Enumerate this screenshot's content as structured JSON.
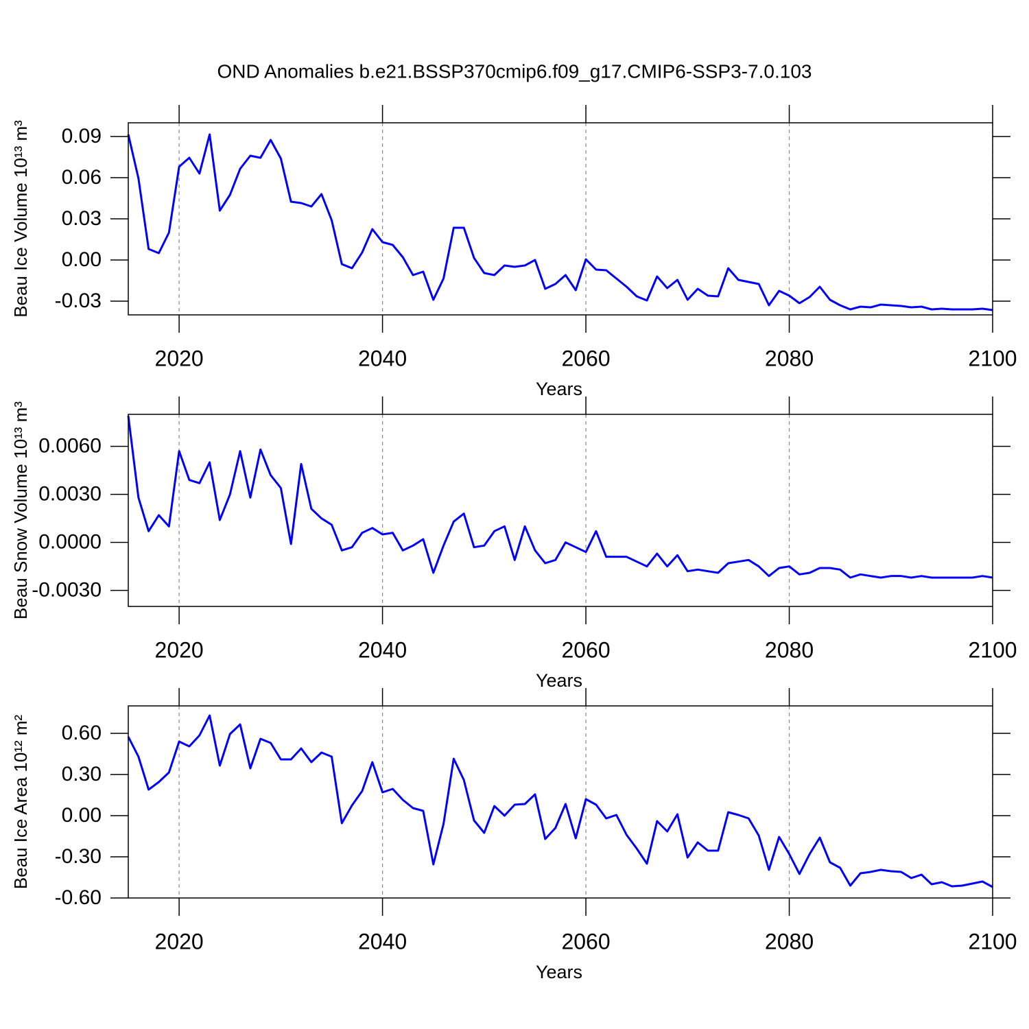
{
  "chart_data": [
    {
      "type": "line",
      "title": "OND Anomalies b.e21.BSSP370cmip6.f09_g17.CMIP6-SSP3-7.0.103",
      "xlabel": "Years",
      "ylabel": "Beau Ice Volume 10¹³ m³",
      "color": "#0000ff",
      "grid": true,
      "xlim": [
        2015,
        2100
      ],
      "xticks": [
        2020,
        2040,
        2060,
        2080,
        2100
      ],
      "ylim": [
        -0.04,
        0.1
      ],
      "yticks": [
        -0.03,
        {
          "value": 0,
          "label": "0.00"
        },
        0.03,
        0.06,
        0.09
      ],
      "x": [
        2015,
        2016,
        2017,
        2018,
        2019,
        2020,
        2021,
        2022,
        2023,
        2024,
        2025,
        2026,
        2027,
        2028,
        2029,
        2030,
        2031,
        2032,
        2033,
        2034,
        2035,
        2036,
        2037,
        2038,
        2039,
        2040,
        2041,
        2042,
        2043,
        2044,
        2045,
        2046,
        2047,
        2048,
        2049,
        2050,
        2051,
        2052,
        2053,
        2054,
        2055,
        2056,
        2057,
        2058,
        2059,
        2060,
        2061,
        2062,
        2063,
        2064,
        2065,
        2066,
        2067,
        2068,
        2069,
        2070,
        2071,
        2072,
        2073,
        2074,
        2075,
        2076,
        2077,
        2078,
        2079,
        2080,
        2081,
        2082,
        2083,
        2084,
        2085,
        2086,
        2087,
        2088,
        2089,
        2090,
        2091,
        2092,
        2093,
        2094,
        2095,
        2096,
        2097,
        2098,
        2099,
        2100
      ],
      "values": [
        0.0915,
        0.0595,
        0.008,
        0.005,
        0.02,
        0.068,
        0.0745,
        0.063,
        0.0915,
        0.036,
        0.0475,
        0.0665,
        0.076,
        0.0745,
        0.0875,
        0.074,
        0.0425,
        0.0415,
        0.039,
        0.048,
        0.029,
        -0.003,
        -0.006,
        0.0055,
        0.0225,
        0.013,
        0.011,
        0.002,
        -0.011,
        -0.0085,
        -0.029,
        -0.0135,
        0.0235,
        0.0235,
        0.0015,
        -0.0095,
        -0.011,
        -0.004,
        -0.005,
        -0.004,
        0.0,
        -0.021,
        -0.0175,
        -0.011,
        -0.022,
        0.0005,
        -0.007,
        -0.0075,
        -0.0135,
        -0.0195,
        -0.0265,
        -0.0295,
        -0.012,
        -0.0205,
        -0.0145,
        -0.029,
        -0.021,
        -0.026,
        -0.0265,
        -0.006,
        -0.0145,
        -0.016,
        -0.0175,
        -0.033,
        -0.0225,
        -0.026,
        -0.0315,
        -0.027,
        -0.0195,
        -0.029,
        -0.033,
        -0.036,
        -0.034,
        -0.0345,
        -0.0325,
        -0.033,
        -0.0335,
        -0.0345,
        -0.034,
        -0.036,
        -0.0355,
        -0.036,
        -0.036,
        -0.036,
        -0.0355,
        -0.0365
      ]
    },
    {
      "type": "line",
      "xlabel": "Years",
      "ylabel": "Beau Snow Volume 10¹³ m³",
      "color": "#0000ff",
      "grid": true,
      "xlim": [
        2015,
        2100
      ],
      "xticks": [
        2020,
        2040,
        2060,
        2080,
        2100
      ],
      "ylim": [
        -0.004,
        0.008
      ],
      "yticks": [
        {
          "value": -0.003,
          "label": "-0.0030"
        },
        {
          "value": 0,
          "label": "0.0000"
        },
        {
          "value": 0.003,
          "label": "0.0030"
        },
        {
          "value": 0.006,
          "label": "0.0060"
        }
      ],
      "x": [
        2015,
        2016,
        2017,
        2018,
        2019,
        2020,
        2021,
        2022,
        2023,
        2024,
        2025,
        2026,
        2027,
        2028,
        2029,
        2030,
        2031,
        2032,
        2033,
        2034,
        2035,
        2036,
        2037,
        2038,
        2039,
        2040,
        2041,
        2042,
        2043,
        2044,
        2045,
        2046,
        2047,
        2048,
        2049,
        2050,
        2051,
        2052,
        2053,
        2054,
        2055,
        2056,
        2057,
        2058,
        2059,
        2060,
        2061,
        2062,
        2063,
        2064,
        2065,
        2066,
        2067,
        2068,
        2069,
        2070,
        2071,
        2072,
        2073,
        2074,
        2075,
        2076,
        2077,
        2078,
        2079,
        2080,
        2081,
        2082,
        2083,
        2084,
        2085,
        2086,
        2087,
        2088,
        2089,
        2090,
        2091,
        2092,
        2093,
        2094,
        2095,
        2096,
        2097,
        2098,
        2099,
        2100
      ],
      "values": [
        0.0079,
        0.0028,
        0.0007,
        0.0017,
        0.001,
        0.0057,
        0.0039,
        0.0037,
        0.005,
        0.0014,
        0.003,
        0.0057,
        0.0028,
        0.0058,
        0.0042,
        0.0034,
        -0.0001,
        0.0049,
        0.0021,
        0.0015,
        0.0011,
        -0.0005,
        -0.0003,
        0.0006,
        0.0009,
        0.0005,
        0.0006,
        -0.0005,
        -0.0002,
        0.0002,
        -0.0019,
        -0.0002,
        0.0013,
        0.0018,
        -0.0003,
        -0.0002,
        0.0007,
        0.001,
        -0.0011,
        0.001,
        -0.0005,
        -0.0013,
        -0.0011,
        0.0,
        -0.0003,
        -0.0006,
        0.0007,
        -0.0009,
        -0.0009,
        -0.0009,
        -0.0012,
        -0.0015,
        -0.0007,
        -0.0015,
        -0.0008,
        -0.0018,
        -0.0017,
        -0.0018,
        -0.0019,
        -0.0013,
        -0.0012,
        -0.0011,
        -0.0015,
        -0.0021,
        -0.0016,
        -0.0015,
        -0.002,
        -0.0019,
        -0.0016,
        -0.0016,
        -0.0017,
        -0.0022,
        -0.002,
        -0.0021,
        -0.0022,
        -0.0021,
        -0.0021,
        -0.0022,
        -0.0021,
        -0.0022,
        -0.0022,
        -0.0022,
        -0.0022,
        -0.0022,
        -0.0021,
        -0.0022
      ]
    },
    {
      "type": "line",
      "xlabel": "Years",
      "ylabel": "Beau Ice Area 10¹² m²",
      "color": "#0000ff",
      "grid": true,
      "xlim": [
        2015,
        2100
      ],
      "xticks": [
        2020,
        2040,
        2060,
        2080,
        2100
      ],
      "ylim": [
        -0.6,
        0.8
      ],
      "yticks": [
        {
          "value": -0.6,
          "label": "-0.60"
        },
        {
          "value": -0.3,
          "label": "-0.30"
        },
        {
          "value": 0,
          "label": "0.00"
        },
        {
          "value": 0.3,
          "label": "0.30"
        },
        {
          "value": 0.6,
          "label": "0.60"
        }
      ],
      "x": [
        2015,
        2016,
        2017,
        2018,
        2019,
        2020,
        2021,
        2022,
        2023,
        2024,
        2025,
        2026,
        2027,
        2028,
        2029,
        2030,
        2031,
        2032,
        2033,
        2034,
        2035,
        2036,
        2037,
        2038,
        2039,
        2040,
        2041,
        2042,
        2043,
        2044,
        2045,
        2046,
        2047,
        2048,
        2049,
        2050,
        2051,
        2052,
        2053,
        2054,
        2055,
        2056,
        2057,
        2058,
        2059,
        2060,
        2061,
        2062,
        2063,
        2064,
        2065,
        2066,
        2067,
        2068,
        2069,
        2070,
        2071,
        2072,
        2073,
        2074,
        2075,
        2076,
        2077,
        2078,
        2079,
        2080,
        2081,
        2082,
        2083,
        2084,
        2085,
        2086,
        2087,
        2088,
        2089,
        2090,
        2091,
        2092,
        2093,
        2094,
        2095,
        2096,
        2097,
        2098,
        2099,
        2100
      ],
      "values": [
        0.575,
        0.43,
        0.19,
        0.245,
        0.315,
        0.54,
        0.505,
        0.585,
        0.73,
        0.365,
        0.595,
        0.665,
        0.345,
        0.56,
        0.53,
        0.41,
        0.41,
        0.49,
        0.39,
        0.46,
        0.43,
        -0.055,
        0.075,
        0.18,
        0.39,
        0.17,
        0.195,
        0.115,
        0.055,
        0.035,
        -0.355,
        -0.06,
        0.415,
        0.26,
        -0.035,
        -0.125,
        0.07,
        0.0,
        0.08,
        0.085,
        0.155,
        -0.17,
        -0.09,
        0.085,
        -0.165,
        0.12,
        0.08,
        -0.02,
        0.005,
        -0.14,
        -0.24,
        -0.35,
        -0.04,
        -0.115,
        0.01,
        -0.305,
        -0.195,
        -0.255,
        -0.255,
        0.025,
        0.005,
        -0.02,
        -0.145,
        -0.395,
        -0.155,
        -0.28,
        -0.425,
        -0.28,
        -0.16,
        -0.34,
        -0.38,
        -0.51,
        -0.42,
        -0.41,
        -0.395,
        -0.405,
        -0.41,
        -0.455,
        -0.43,
        -0.5,
        -0.485,
        -0.515,
        -0.51,
        -0.495,
        -0.48,
        -0.52
      ]
    }
  ]
}
